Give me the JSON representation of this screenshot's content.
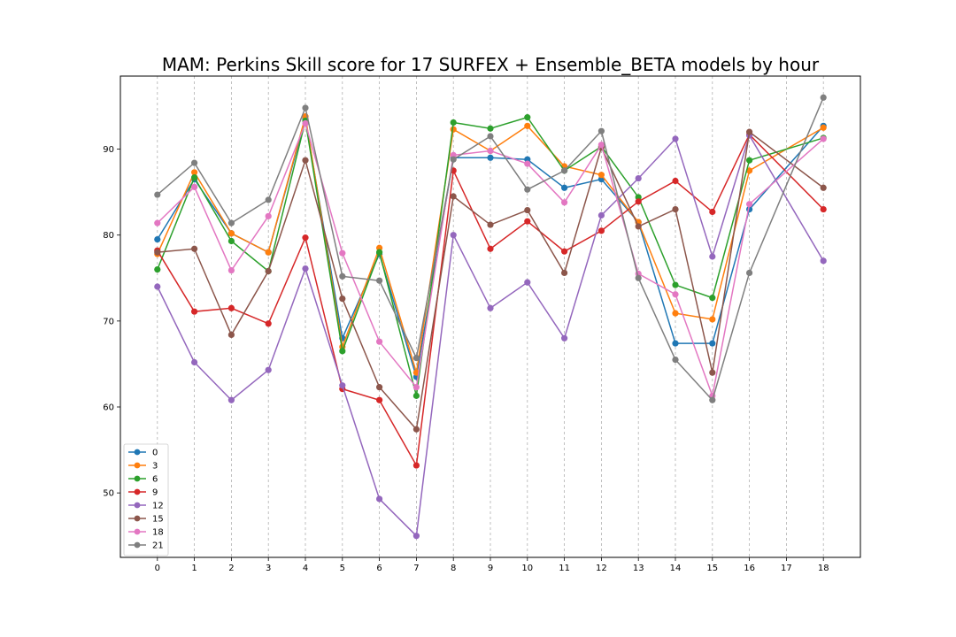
{
  "chart_data": {
    "type": "line",
    "title": "MAM: Perkins Skill score for 17 SURFEX + Ensemble_BETA models by hour",
    "xlabel": "",
    "ylabel": "",
    "x": [
      0,
      1,
      2,
      3,
      4,
      5,
      6,
      7,
      8,
      9,
      10,
      11,
      12,
      13,
      14,
      15,
      16,
      17,
      18
    ],
    "x_tick_labels": [
      "0",
      "1",
      "2",
      "3",
      "4",
      "5",
      "6",
      "7",
      "8",
      "9",
      "10",
      "11",
      "12",
      "13",
      "14",
      "15",
      "16",
      "17",
      "18"
    ],
    "xlim": [
      -1,
      19
    ],
    "ylim": [
      42.5,
      98.5
    ],
    "y_ticks": [
      50,
      60,
      70,
      80,
      90
    ],
    "grid": "vertical dashed",
    "legend_position": "lower-left",
    "series": [
      {
        "name": "0",
        "color": "#1f77b4",
        "points": [
          [
            0,
            79.5
          ],
          [
            1,
            86.5
          ],
          [
            2,
            80.2
          ],
          [
            3,
            78.0
          ],
          [
            4,
            93.5
          ],
          [
            5,
            68.0
          ],
          [
            6,
            77.8
          ],
          [
            7,
            63.5
          ],
          [
            8,
            89.0
          ],
          [
            9,
            89.0
          ],
          [
            10,
            88.8
          ],
          [
            11,
            85.5
          ],
          [
            12,
            86.5
          ],
          [
            13,
            81.5
          ],
          [
            14,
            67.4
          ],
          [
            15,
            67.4
          ],
          [
            16,
            83.0
          ],
          [
            18,
            92.7
          ]
        ]
      },
      {
        "name": "3",
        "color": "#ff7f0e",
        "points": [
          [
            0,
            77.8
          ],
          [
            1,
            87.3
          ],
          [
            2,
            80.2
          ],
          [
            3,
            78.0
          ],
          [
            4,
            93.8
          ],
          [
            5,
            67.0
          ],
          [
            6,
            78.5
          ],
          [
            7,
            64.0
          ],
          [
            8,
            92.3
          ],
          [
            9,
            89.8
          ],
          [
            10,
            92.7
          ],
          [
            11,
            88.0
          ],
          [
            12,
            87.0
          ],
          [
            13,
            81.5
          ],
          [
            14,
            70.9
          ],
          [
            15,
            70.2
          ],
          [
            16,
            87.5
          ],
          [
            18,
            92.5
          ]
        ]
      },
      {
        "name": "6",
        "color": "#2ca02c",
        "points": [
          [
            0,
            76.0
          ],
          [
            1,
            86.7
          ],
          [
            2,
            79.3
          ],
          [
            3,
            75.8
          ],
          [
            4,
            93.3
          ],
          [
            5,
            66.5
          ],
          [
            6,
            78.0
          ],
          [
            7,
            61.3
          ],
          [
            8,
            93.1
          ],
          [
            9,
            92.4
          ],
          [
            10,
            93.7
          ],
          [
            11,
            87.5
          ],
          [
            12,
            90.3
          ],
          [
            13,
            84.4
          ],
          [
            14,
            74.2
          ],
          [
            15,
            72.7
          ],
          [
            16,
            88.7
          ],
          [
            18,
            91.3
          ]
        ]
      },
      {
        "name": "9",
        "color": "#d62728",
        "points": [
          [
            0,
            78.2
          ],
          [
            1,
            71.1
          ],
          [
            2,
            71.5
          ],
          [
            3,
            69.7
          ],
          [
            4,
            79.7
          ],
          [
            5,
            62.1
          ],
          [
            6,
            60.8
          ],
          [
            7,
            53.2
          ],
          [
            8,
            87.5
          ],
          [
            9,
            78.4
          ],
          [
            10,
            81.6
          ],
          [
            11,
            78.1
          ],
          [
            12,
            80.5
          ],
          [
            13,
            83.9
          ],
          [
            14,
            86.3
          ],
          [
            15,
            82.7
          ],
          [
            16,
            91.7
          ],
          [
            18,
            83.0
          ]
        ]
      },
      {
        "name": "12",
        "color": "#9467bd",
        "points": [
          [
            0,
            74.0
          ],
          [
            1,
            65.2
          ],
          [
            2,
            60.8
          ],
          [
            3,
            64.3
          ],
          [
            4,
            76.1
          ],
          [
            5,
            62.5
          ],
          [
            6,
            49.3
          ],
          [
            7,
            45.0
          ],
          [
            8,
            80.0
          ],
          [
            9,
            71.5
          ],
          [
            10,
            74.5
          ],
          [
            11,
            68.0
          ],
          [
            12,
            82.3
          ],
          [
            13,
            86.6
          ],
          [
            14,
            91.2
          ],
          [
            15,
            77.5
          ],
          [
            16,
            91.6
          ],
          [
            18,
            77.0
          ]
        ]
      },
      {
        "name": "15",
        "color": "#8c564b",
        "points": [
          [
            0,
            78.0
          ],
          [
            1,
            78.4
          ],
          [
            2,
            68.4
          ],
          [
            3,
            75.8
          ],
          [
            4,
            88.7
          ],
          [
            5,
            72.6
          ],
          [
            6,
            62.3
          ],
          [
            7,
            57.4
          ],
          [
            8,
            84.5
          ],
          [
            9,
            81.2
          ],
          [
            10,
            82.9
          ],
          [
            11,
            75.6
          ],
          [
            12,
            90.2
          ],
          [
            13,
            81.0
          ],
          [
            14,
            83.0
          ],
          [
            15,
            64.0
          ],
          [
            16,
            92.0
          ],
          [
            18,
            85.5
          ]
        ]
      },
      {
        "name": "18",
        "color": "#e377c2",
        "points": [
          [
            0,
            81.4
          ],
          [
            1,
            85.6
          ],
          [
            2,
            75.9
          ],
          [
            3,
            82.2
          ],
          [
            4,
            93.0
          ],
          [
            5,
            77.9
          ],
          [
            6,
            67.6
          ],
          [
            7,
            62.3
          ],
          [
            8,
            89.3
          ],
          [
            9,
            89.8
          ],
          [
            10,
            88.3
          ],
          [
            11,
            83.8
          ],
          [
            12,
            90.5
          ],
          [
            13,
            75.5
          ],
          [
            14,
            73.1
          ],
          [
            15,
            61.3
          ],
          [
            16,
            83.6
          ],
          [
            18,
            91.2
          ]
        ]
      },
      {
        "name": "21",
        "color": "#7f7f7f",
        "points": [
          [
            0,
            84.7
          ],
          [
            1,
            88.4
          ],
          [
            2,
            81.4
          ],
          [
            3,
            84.1
          ],
          [
            4,
            94.8
          ],
          [
            5,
            75.2
          ],
          [
            6,
            74.7
          ],
          [
            7,
            65.7
          ],
          [
            8,
            88.8
          ],
          [
            9,
            91.5
          ],
          [
            10,
            85.3
          ],
          [
            11,
            87.5
          ],
          [
            12,
            92.1
          ],
          [
            13,
            75.0
          ],
          [
            14,
            65.5
          ],
          [
            15,
            60.8
          ],
          [
            16,
            75.6
          ],
          [
            18,
            96.0
          ]
        ]
      }
    ]
  }
}
